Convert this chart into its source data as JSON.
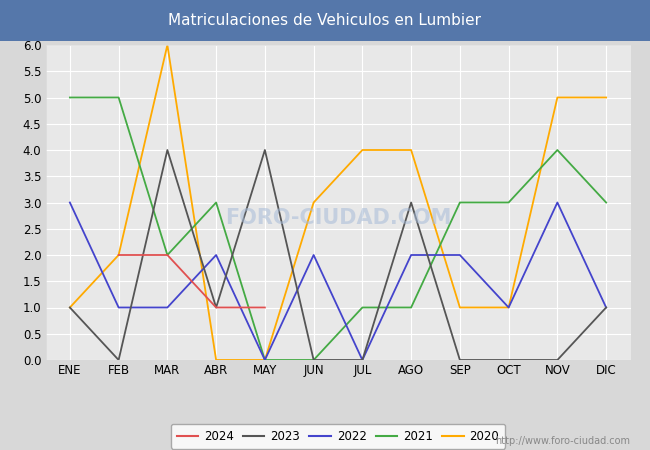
{
  "title": "Matriculaciones de Vehiculos en Lumbier",
  "months": [
    "ENE",
    "FEB",
    "MAR",
    "ABR",
    "MAY",
    "JUN",
    "JUL",
    "AGO",
    "SEP",
    "OCT",
    "NOV",
    "DIC"
  ],
  "series": {
    "2024": {
      "values": [
        null,
        2,
        2,
        1,
        1,
        null,
        null,
        null,
        null,
        null,
        null,
        null
      ],
      "color": "#e05050",
      "label": "2024"
    },
    "2023": {
      "values": [
        1,
        0,
        4,
        1,
        4,
        0,
        0,
        3,
        0,
        0,
        0,
        1
      ],
      "color": "#555555",
      "label": "2023"
    },
    "2022": {
      "values": [
        3,
        1,
        1,
        2,
        0,
        2,
        0,
        2,
        2,
        1,
        3,
        1
      ],
      "color": "#4444cc",
      "label": "2022"
    },
    "2021": {
      "values": [
        5,
        5,
        2,
        3,
        0,
        0,
        1,
        1,
        3,
        3,
        4,
        3
      ],
      "color": "#44aa44",
      "label": "2021"
    },
    "2020": {
      "values": [
        1,
        2,
        6,
        0,
        0,
        3,
        4,
        4,
        1,
        1,
        5,
        5
      ],
      "color": "#ffaa00",
      "label": "2020"
    }
  },
  "ylim": [
    0,
    6.0
  ],
  "yticks": [
    0.0,
    0.5,
    1.0,
    1.5,
    2.0,
    2.5,
    3.0,
    3.5,
    4.0,
    4.5,
    5.0,
    5.5,
    6.0
  ],
  "fig_bg_color": "#d8d8d8",
  "plot_bg_color": "#e8e8e8",
  "title_bg_color": "#5577aa",
  "title_text_color": "#ffffff",
  "grid_color": "#ffffff",
  "watermark_text": "http://www.foro-ciudad.com",
  "watermark_overlay": "FORO-CIUDAD.COM",
  "legend_order": [
    "2024",
    "2023",
    "2022",
    "2021",
    "2020"
  ],
  "linewidth": 1.3
}
